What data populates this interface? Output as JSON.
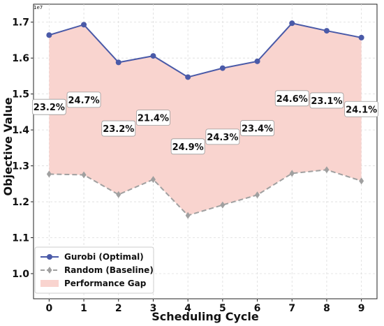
{
  "chart_data": {
    "type": "line",
    "xlabel": "Scheduling Cycle",
    "ylabel": "Objective Value",
    "y_multiplier_label": "1e7",
    "x": [
      0,
      1,
      2,
      3,
      4,
      5,
      6,
      7,
      8,
      9
    ],
    "x_ticks": [
      "0",
      "1",
      "2",
      "3",
      "4",
      "5",
      "6",
      "7",
      "8",
      "9"
    ],
    "ylim": [
      0.93,
      1.75
    ],
    "y_ticks": [
      "1.0",
      "1.1",
      "1.2",
      "1.3",
      "1.4",
      "1.5",
      "1.6",
      "1.7"
    ],
    "series": [
      {
        "name": "Gurobi (Optimal)",
        "color": "#4a5aa8",
        "marker": "circle",
        "values": [
          1.664,
          1.693,
          1.588,
          1.606,
          1.547,
          1.572,
          1.591,
          1.697,
          1.676,
          1.657
        ]
      },
      {
        "name": "Random (Baseline)",
        "color": "#a0a0a0",
        "marker": "diamond",
        "dashed": true,
        "values": [
          1.277,
          1.275,
          1.22,
          1.262,
          1.162,
          1.191,
          1.219,
          1.279,
          1.289,
          1.258
        ]
      }
    ],
    "fill_between": {
      "name": "Performance Gap",
      "color": "#f9d4cf"
    },
    "gap_labels": [
      {
        "text": "23.2%",
        "x": 0,
        "y": 1.464
      },
      {
        "text": "24.7%",
        "x": 1,
        "y": 1.484
      },
      {
        "text": "23.2%",
        "x": 2,
        "y": 1.404
      },
      {
        "text": "21.4%",
        "x": 3,
        "y": 1.434
      },
      {
        "text": "24.9%",
        "x": 4,
        "y": 1.354
      },
      {
        "text": "24.3%",
        "x": 5,
        "y": 1.381
      },
      {
        "text": "23.4%",
        "x": 6,
        "y": 1.405
      },
      {
        "text": "24.6%",
        "x": 7,
        "y": 1.488
      },
      {
        "text": "23.1%",
        "x": 8,
        "y": 1.482
      },
      {
        "text": "24.1%",
        "x": 9,
        "y": 1.458
      }
    ],
    "grid": true,
    "legend_position": "lower-left"
  }
}
